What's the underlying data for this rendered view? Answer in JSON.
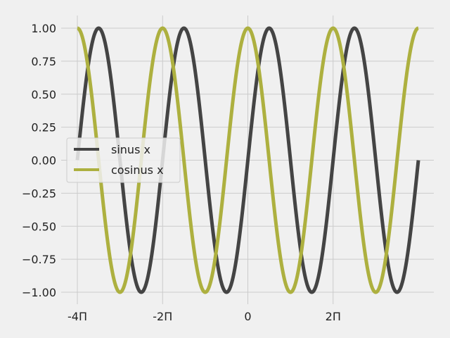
{
  "chart_data": {
    "type": "line",
    "title": "",
    "xlabel": "",
    "ylabel": "",
    "xlim": [
      -12.566,
      12.566
    ],
    "ylim": [
      -1.0,
      1.0
    ],
    "grid": true,
    "x_ticks": [
      {
        "value": -12.566,
        "label": "-4Π"
      },
      {
        "value": -6.283,
        "label": "-2Π"
      },
      {
        "value": 0,
        "label": "0"
      },
      {
        "value": 6.283,
        "label": "2Π"
      }
    ],
    "y_ticks": [
      {
        "value": 1.0,
        "label": "1.00"
      },
      {
        "value": 0.75,
        "label": "0.75"
      },
      {
        "value": 0.5,
        "label": "0.50"
      },
      {
        "value": 0.25,
        "label": "0.25"
      },
      {
        "value": 0.0,
        "label": "0.00"
      },
      {
        "value": -0.25,
        "label": "−0.25"
      },
      {
        "value": -0.5,
        "label": "−0.50"
      },
      {
        "value": -0.75,
        "label": "−0.75"
      },
      {
        "value": -1.0,
        "label": "−1.00"
      }
    ],
    "x_range": [
      -12.566,
      12.566
    ],
    "legend_position": "center-left",
    "series": [
      {
        "name": "sinus x",
        "function": "sin",
        "color": "#444444"
      },
      {
        "name": "cosinus x",
        "function": "cos",
        "color": "#adb03f"
      }
    ]
  }
}
